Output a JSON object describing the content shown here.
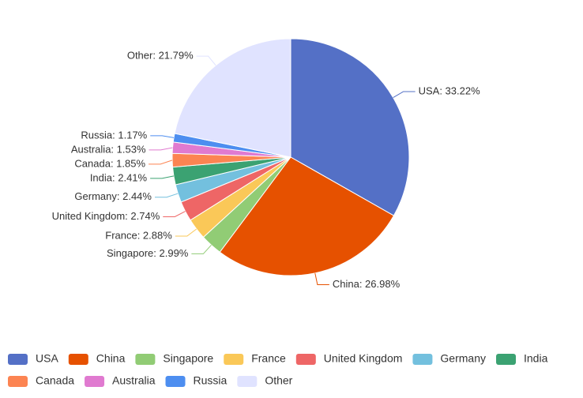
{
  "chart_data": {
    "type": "pie",
    "categories": [
      "USA",
      "China",
      "Singapore",
      "France",
      "United Kingdom",
      "Germany",
      "India",
      "Canada",
      "Australia",
      "Russia",
      "Other"
    ],
    "values": [
      33.22,
      26.98,
      2.99,
      2.88,
      2.74,
      2.44,
      2.41,
      1.85,
      1.53,
      1.17,
      21.79
    ],
    "value_labels": [
      "USA: 33.22%",
      "China: 26.98%",
      "Singapore: 2.99%",
      "France: 2.88%",
      "United Kingdom: 2.74%",
      "Germany: 2.44%",
      "India: 2.41%",
      "Canada: 1.85%",
      "Australia: 1.53%",
      "Russia: 1.17%",
      "Other: 21.79%"
    ],
    "colors": [
      "#5470c6",
      "#e65100",
      "#91cc75",
      "#fac858",
      "#ee6666",
      "#73c0de",
      "#3ba272",
      "#fc8452",
      "#e07ad0",
      "#4d8ef0",
      "#e0e3ff"
    ],
    "legend": "bottom"
  }
}
